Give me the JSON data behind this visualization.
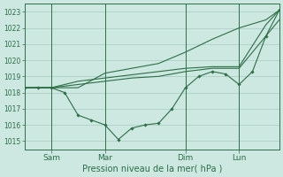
{
  "background_color": "#cce8e0",
  "grid_color": "#a8ccc4",
  "line_color": "#2d6e47",
  "xlabel": "Pression niveau de la mer( hPa )",
  "ylim": [
    1014.5,
    1023.5
  ],
  "yticks": [
    1015,
    1016,
    1017,
    1018,
    1019,
    1020,
    1021,
    1022,
    1023
  ],
  "xtick_labels": [
    "Sam",
    "Mar",
    "Dim",
    "Lun"
  ],
  "xtick_positions": [
    12,
    36,
    72,
    96
  ],
  "xlim": [
    0,
    114
  ],
  "vline_positions": [
    12,
    36,
    72,
    96
  ],
  "line1_x": [
    0,
    12,
    24,
    36,
    48,
    60,
    72,
    84,
    96,
    108,
    114
  ],
  "line1_y": [
    1018.3,
    1018.3,
    1018.7,
    1018.9,
    1019.1,
    1019.3,
    1019.5,
    1019.6,
    1019.6,
    1022.2,
    1023.1
  ],
  "line2_x": [
    0,
    12,
    24,
    36,
    48,
    60,
    72,
    84,
    96,
    108,
    114
  ],
  "line2_y": [
    1018.3,
    1018.3,
    1018.5,
    1018.7,
    1018.9,
    1019.0,
    1019.3,
    1019.5,
    1019.5,
    1021.5,
    1022.5
  ],
  "line3_x": [
    0,
    12,
    24,
    36,
    48,
    60,
    72,
    84,
    96,
    108,
    114
  ],
  "line3_y": [
    1018.3,
    1018.3,
    1018.3,
    1019.2,
    1019.5,
    1019.8,
    1020.5,
    1021.3,
    1022.0,
    1022.5,
    1023.1
  ],
  "line4_x": [
    0,
    6,
    12,
    18,
    24,
    30,
    36,
    42,
    48,
    54,
    60,
    66,
    72,
    78,
    84,
    90,
    96,
    102,
    108,
    114
  ],
  "line4_y": [
    1018.3,
    1018.3,
    1018.3,
    1018.0,
    1016.6,
    1016.3,
    1016.0,
    1015.1,
    1015.8,
    1016.0,
    1016.1,
    1017.0,
    1018.3,
    1019.0,
    1019.3,
    1019.15,
    1018.5,
    1019.3,
    1021.5,
    1023.1
  ]
}
